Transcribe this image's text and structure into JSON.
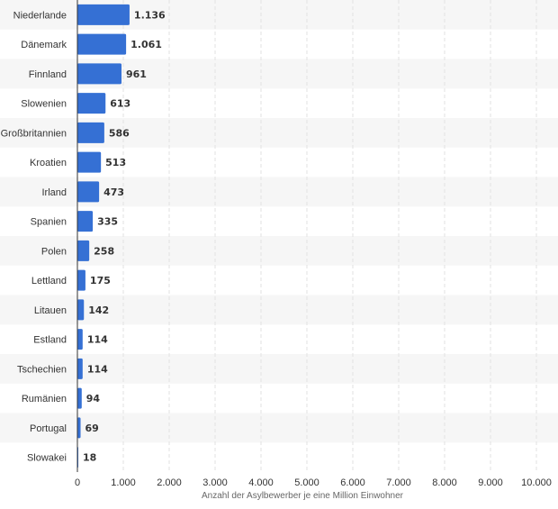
{
  "chart_data": {
    "type": "bar",
    "orientation": "horizontal",
    "categories": [
      "Niederlande",
      "Dänemark",
      "Finnland",
      "Slowenien",
      "Großbritannien",
      "Kroatien",
      "Irland",
      "Spanien",
      "Polen",
      "Lettland",
      "Litauen",
      "Estland",
      "Tschechien",
      "Rumänien",
      "Portugal",
      "Slowakei"
    ],
    "values": [
      1136,
      1061,
      961,
      613,
      586,
      513,
      473,
      335,
      258,
      175,
      142,
      114,
      114,
      94,
      69,
      18
    ],
    "value_labels": [
      "1.136",
      "1.061",
      "961",
      "613",
      "586",
      "513",
      "473",
      "335",
      "258",
      "175",
      "142",
      "114",
      "114",
      "94",
      "69",
      "18"
    ],
    "xlabel": "Anzahl der Asylbewerber je eine Million Einwohner",
    "xlim": [
      0,
      10000
    ],
    "ticks": [
      0,
      1000,
      2000,
      3000,
      4000,
      5000,
      6000,
      7000,
      8000,
      9000,
      10000
    ],
    "tick_labels": [
      "0",
      "1.000",
      "2.000",
      "3.000",
      "4.000",
      "5.000",
      "6.000",
      "7.000",
      "8.000",
      "9.000",
      "10.000"
    ],
    "grid": true,
    "bar_color": "#3570d4",
    "stripe_color": "#f6f6f6"
  }
}
